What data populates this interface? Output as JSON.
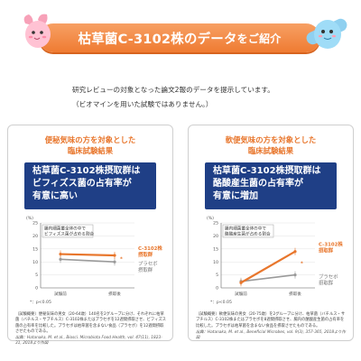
{
  "banner": {
    "title": "枯草菌C-3102株のデータ",
    "title_suffix": "をご紹介",
    "color": "#ef7b32"
  },
  "intro": {
    "line1": "研究レビューの対象となった論文2報のデータを提示しています。",
    "line2": "（ビオマインを用いた試験ではありません。）"
  },
  "panels": [
    {
      "heading_line1": "便秘気味の方を対象とした",
      "heading_line2": "臨床試験結果",
      "result_line1": "枯草菌C-3102株摂取群は",
      "result_line2": "ビフィズス菌の占有率が",
      "result_line3": "有意に高い",
      "axis_unit": "(%)",
      "legend_line1": "腸内細菌叢全体の中で",
      "legend_line2": "ビフィズス菌が占める割合",
      "y_ticks": [
        "25",
        "20",
        "15",
        "10",
        "5",
        "0"
      ],
      "x_ticks": [
        "試験前",
        "摂取後"
      ],
      "series_c3102_line1": "C-3102株",
      "series_c3102_line2": "摂取群",
      "series_placebo_line1": "プラセボ",
      "series_placebo_line2": "摂取群",
      "significance": "p<0.05",
      "footnote": "（試験概要）便秘気味の男女（20-64歳）140名を2グループに分け、それぞれに枯草菌（バチルス・サブチルス）C-3102株またはプラセボを12週間摂取させ、ビフィズス菌の占有率を比較した。プラセボは枯草菌を含まない食品（プラセボ）を12週間摂取させたものである。",
      "citation": "出典：Hatanaka, M. et al., Biosci. Microbiota Food Health, vol. 47(11), 1823-31, 2018より作図"
    },
    {
      "heading_line1": "軟便気味の方を対象とした",
      "heading_line2": "臨床試験結果",
      "result_line1": "枯草菌C-3102株摂取群は",
      "result_line2": "酪酸産生菌の占有率が",
      "result_line3": "有意に増加",
      "axis_unit": "(%)",
      "legend_line1": "腸内細菌叢全体の中で",
      "legend_line2": "酪酸産生菌が占める割合",
      "y_ticks": [
        "25",
        "20",
        "15",
        "10",
        "5",
        "0"
      ],
      "x_ticks": [
        "試験前",
        "摂取後"
      ],
      "series_c3102_line1": "C-3102株",
      "series_c3102_line2": "摂取群",
      "series_placebo_line1": "プラセボ",
      "series_placebo_line2": "摂取群",
      "significance": "p<0.05",
      "footnote": "（試験概要）軟便気味の男女（20-75歳）を2グループに分け、枯草菌（バチルス・サブチルス）C-3102株またはプラセボを8週間摂取させ、腸内の酪酸産生菌の占有率を比較した。プラセボは枯草菌を含まない食品を摂取させたものである。",
      "citation": "出典：Hatanaka, M. et al., Beneficial Microbes, vol. 9(3), 357-365, 2018より作図"
    }
  ],
  "chart_data": [
    {
      "type": "line",
      "categories": [
        "試験前",
        "摂取後"
      ],
      "ylim": [
        0,
        25
      ],
      "series": [
        {
          "name": "C-3102株摂取群",
          "values": [
            13,
            12.5
          ],
          "color": "#e8762c"
        },
        {
          "name": "プラセボ摂取群",
          "values": [
            11,
            10
          ],
          "color": "#9a9a9a"
        }
      ],
      "grid": true
    },
    {
      "type": "line",
      "categories": [
        "試験前",
        "摂取後"
      ],
      "ylim": [
        0,
        25
      ],
      "series": [
        {
          "name": "C-3102株摂取群",
          "values": [
            2,
            14
          ],
          "color": "#e8762c"
        },
        {
          "name": "プラセボ摂取群",
          "values": [
            2.5,
            5
          ],
          "color": "#9a9a9a"
        }
      ],
      "grid": true
    }
  ]
}
